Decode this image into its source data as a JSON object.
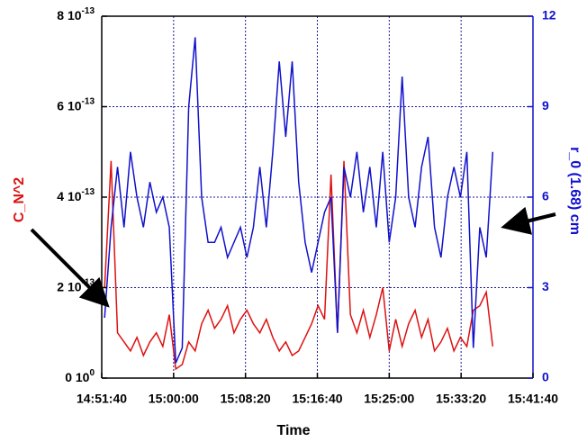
{
  "chart_data": {
    "type": "line",
    "xlabel": "Time",
    "ylabel": "C_N^2",
    "y2label": "r_0 (1.68) cm",
    "x": [
      "14:52:00",
      "14:52:45",
      "14:53:30",
      "14:54:15",
      "14:55:00",
      "14:55:45",
      "14:56:30",
      "14:57:15",
      "14:58:00",
      "14:58:45",
      "14:59:30",
      "15:00:15",
      "15:01:00",
      "15:01:45",
      "15:02:30",
      "15:03:15",
      "15:04:00",
      "15:04:45",
      "15:05:30",
      "15:06:15",
      "15:07:00",
      "15:07:45",
      "15:08:30",
      "15:09:15",
      "15:10:00",
      "15:10:45",
      "15:11:30",
      "15:12:15",
      "15:13:00",
      "15:13:45",
      "15:14:30",
      "15:15:15",
      "15:16:00",
      "15:16:45",
      "15:17:30",
      "15:18:15",
      "15:19:00",
      "15:19:45",
      "15:20:30",
      "15:21:15",
      "15:22:00",
      "15:22:45",
      "15:23:30",
      "15:24:15",
      "15:25:00",
      "15:25:45",
      "15:26:30",
      "15:27:15",
      "15:28:00",
      "15:28:45",
      "15:29:30",
      "15:30:15",
      "15:31:00",
      "15:31:45",
      "15:32:30",
      "15:33:15",
      "15:34:00",
      "15:34:45",
      "15:35:30",
      "15:36:15",
      "15:37:00"
    ],
    "series": [
      {
        "color": "#dd1111",
        "values": [
          2e-13,
          4.8e-13,
          1e-13,
          8e-14,
          6e-14,
          9e-14,
          5e-14,
          8e-14,
          1e-13,
          7e-14,
          1.4e-13,
          2e-14,
          3e-14,
          8e-14,
          6e-14,
          1.2e-13,
          1.5e-13,
          1.1e-13,
          1.3e-13,
          1.6e-13,
          1e-13,
          1.3e-13,
          1.5e-13,
          1.2e-13,
          1e-13,
          1.3e-13,
          9e-14,
          6e-14,
          8e-14,
          5e-14,
          6e-14,
          9e-14,
          1.2e-13,
          1.6e-13,
          1.3e-13,
          4.5e-13,
          1e-13,
          4.8e-13,
          1.4e-13,
          1e-13,
          1.5e-13,
          9e-14,
          1.4e-13,
          2e-13,
          6e-14,
          1.3e-13,
          7e-14,
          1.2e-13,
          1.5e-13,
          9e-14,
          1.3e-13,
          6e-14,
          8e-14,
          1.1e-13,
          6e-14,
          9e-14,
          7e-14,
          1.5e-13,
          1.6e-13,
          1.9e-13,
          7e-14
        ]
      },
      {
        "color": "#1111cc",
        "axis": "y2",
        "values": [
          2,
          5,
          7,
          5,
          7.5,
          6,
          5,
          6.5,
          5.5,
          6,
          5,
          0.5,
          1,
          9,
          11.3,
          6,
          4.5,
          4.5,
          5,
          4,
          4.5,
          5,
          4,
          5,
          7,
          5,
          7.5,
          10.5,
          8,
          10.5,
          6.5,
          4.5,
          3.5,
          4.5,
          5.5,
          6,
          1.5,
          7,
          6,
          7.5,
          5.5,
          7,
          5,
          7.5,
          4.5,
          6,
          10,
          6,
          5,
          7,
          8,
          5,
          4,
          6,
          7,
          6,
          7.5,
          1,
          5,
          4,
          7.5
        ]
      }
    ],
    "xlim": [
      "14:51:40",
      "15:41:40"
    ],
    "xticks": [
      "14:51:40",
      "15:00:00",
      "15:08:20",
      "15:16:40",
      "15:25:00",
      "15:33:20",
      "15:41:40"
    ],
    "ylim": [
      0,
      8e-13
    ],
    "yticks": [
      {
        "value": 0,
        "label": "0 10",
        "sup": "0"
      },
      {
        "value": 2e-13,
        "label": "2 10",
        "sup": "-13"
      },
      {
        "value": 4e-13,
        "label": "4 10",
        "sup": "-13"
      },
      {
        "value": 6e-13,
        "label": "6 10",
        "sup": "-13"
      },
      {
        "value": 8e-13,
        "label": "8 10",
        "sup": "-13"
      }
    ],
    "y2lim": [
      0,
      12
    ],
    "y2ticks": [
      0,
      3,
      6,
      9,
      12
    ],
    "grid": true
  }
}
